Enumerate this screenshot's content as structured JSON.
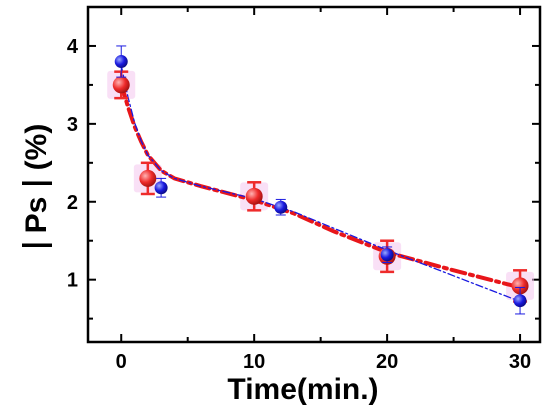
{
  "chart_data": {
    "type": "scatter",
    "xlabel": "Time(min.)",
    "ylabel_main": "Ps",
    "ylabel_unit": "(%)",
    "xlim": [
      -2.5,
      31.5
    ],
    "ylim": [
      0.2,
      4.5
    ],
    "xticks": [
      0,
      10,
      20,
      30
    ],
    "yticks": [
      1,
      2,
      3,
      4
    ],
    "grid": false,
    "legend": "none",
    "series": [
      {
        "marker": "circle",
        "color": "#ee2b2b",
        "fit_color": "#e8161a",
        "fit_style": "dash-dot",
        "points": [
          {
            "x": 0,
            "y": 3.5,
            "err": 0.17
          },
          {
            "x": 2,
            "y": 2.3,
            "err": 0.2
          },
          {
            "x": 10,
            "y": 2.07,
            "err": 0.18
          },
          {
            "x": 20,
            "y": 1.3,
            "err": 0.2
          },
          {
            "x": 30,
            "y": 0.92,
            "err": 0.2
          }
        ],
        "fit": [
          [
            0,
            3.52
          ],
          [
            0.5,
            3.22
          ],
          [
            1,
            2.97
          ],
          [
            1.5,
            2.77
          ],
          [
            2,
            2.6
          ],
          [
            3,
            2.4
          ],
          [
            4,
            2.3
          ],
          [
            6,
            2.2
          ],
          [
            8,
            2.11
          ],
          [
            10,
            2.02
          ],
          [
            13,
            1.85
          ],
          [
            16,
            1.62
          ],
          [
            20,
            1.35
          ],
          [
            25,
            1.12
          ],
          [
            30,
            0.9
          ]
        ]
      },
      {
        "marker": "circle",
        "color": "#1a1ae0",
        "fit_color": "#1a1ae0",
        "fit_style": "dash-dot-thin",
        "points": [
          {
            "x": 0,
            "y": 3.8,
            "err": 0.2
          },
          {
            "x": 3,
            "y": 2.18,
            "err": 0.12
          },
          {
            "x": 12,
            "y": 1.93,
            "err": 0.1
          },
          {
            "x": 20,
            "y": 1.32,
            "err": 0.1
          },
          {
            "x": 30,
            "y": 0.73,
            "err": 0.17
          }
        ],
        "fit": [
          [
            0,
            3.75
          ],
          [
            0.5,
            3.35
          ],
          [
            1,
            3.02
          ],
          [
            1.5,
            2.78
          ],
          [
            2,
            2.6
          ],
          [
            3,
            2.4
          ],
          [
            4,
            2.3
          ],
          [
            6,
            2.2
          ],
          [
            8,
            2.12
          ],
          [
            10,
            2.04
          ],
          [
            13,
            1.87
          ],
          [
            16,
            1.66
          ],
          [
            20,
            1.38
          ],
          [
            25,
            1.05
          ],
          [
            30,
            0.72
          ]
        ]
      }
    ]
  }
}
